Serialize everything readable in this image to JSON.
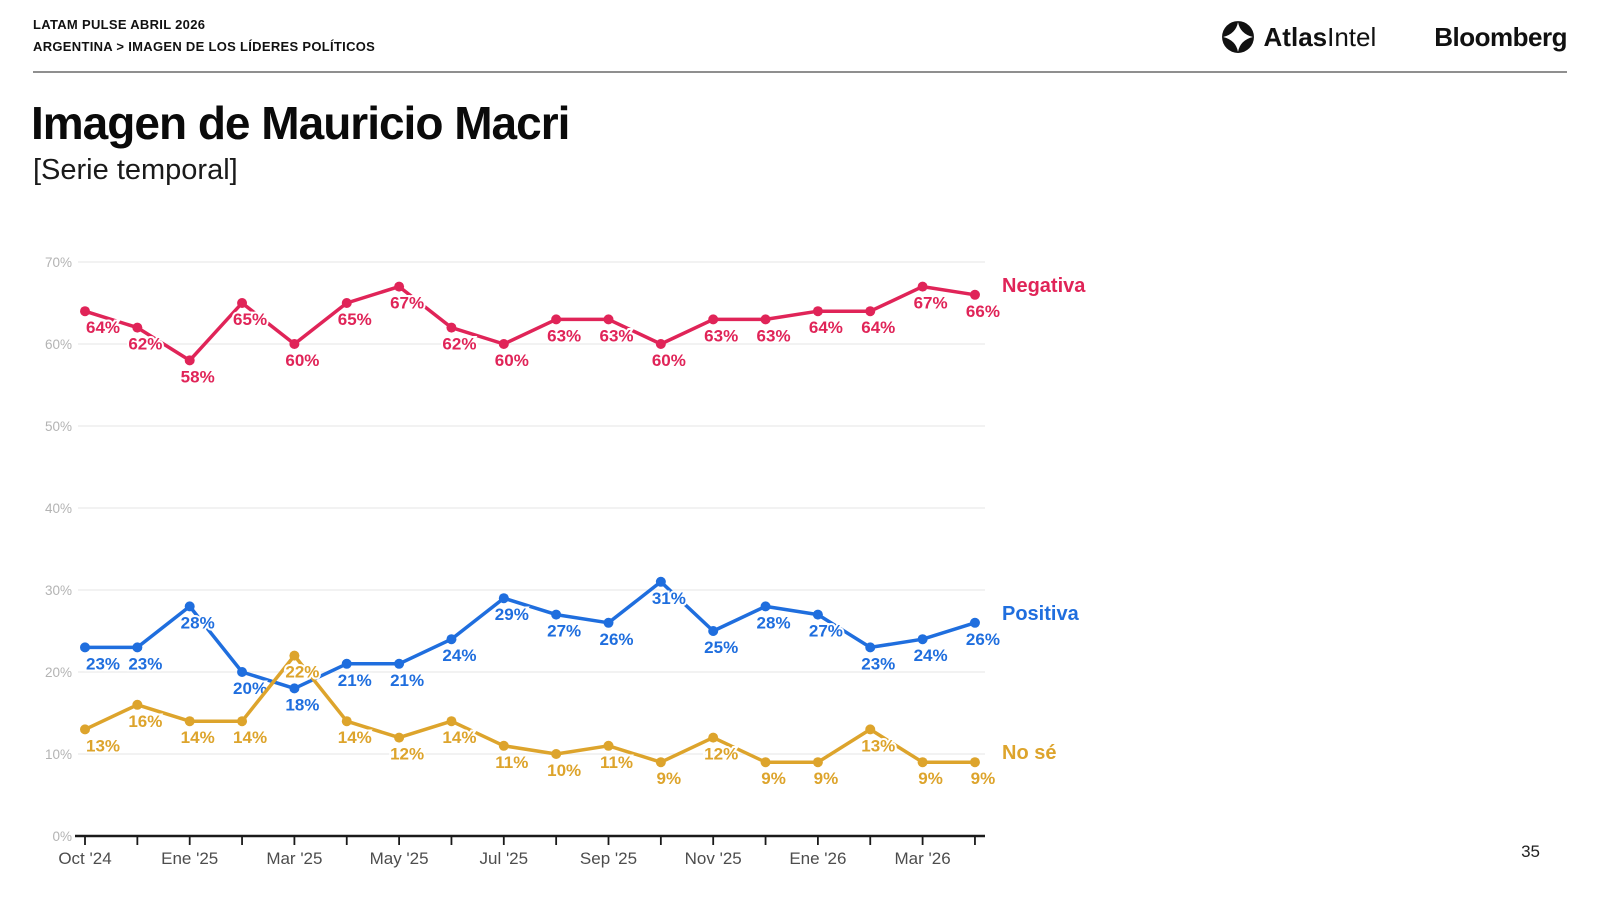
{
  "header": {
    "line1": "LATAM PULSE ABRIL 2026",
    "line2": "ARGENTINA > IMAGEN DE LOS LÍDERES POLÍTICOS",
    "atlas_bold": "Atlas",
    "atlas_light": "Intel",
    "bloomberg": "Bloomberg"
  },
  "title": "Imagen de Mauricio Macri",
  "subtitle": "[Serie temporal]",
  "page_number": "35",
  "chart_data": {
    "type": "line",
    "n_points": 18,
    "x_tick_labels": [
      "Oct '24",
      "Ene '25",
      "Mar '25",
      "May '25",
      "Jul '25",
      "Sep '25",
      "Nov '25",
      "Ene '26",
      "Mar '26"
    ],
    "y_ticks": [
      "0%",
      "10%",
      "20%",
      "30%",
      "40%",
      "50%",
      "60%",
      "70%"
    ],
    "ylim": [
      0,
      70
    ],
    "grid": true,
    "legend_position": "right",
    "series": [
      {
        "name": "Negativa",
        "color": "#e02458",
        "values": [
          64,
          62,
          58,
          65,
          60,
          65,
          67,
          62,
          60,
          63,
          63,
          60,
          63,
          63,
          64,
          64,
          67,
          66
        ]
      },
      {
        "name": "Positiva",
        "color": "#1f6ede",
        "values": [
          23,
          23,
          28,
          20,
          18,
          21,
          21,
          24,
          29,
          27,
          26,
          31,
          25,
          28,
          27,
          23,
          24,
          26
        ]
      },
      {
        "name": "No sé",
        "color": "#dda42c",
        "values": [
          13,
          16,
          14,
          14,
          22,
          14,
          12,
          14,
          11,
          10,
          11,
          9,
          12,
          9,
          9,
          13,
          9,
          9
        ]
      }
    ]
  }
}
